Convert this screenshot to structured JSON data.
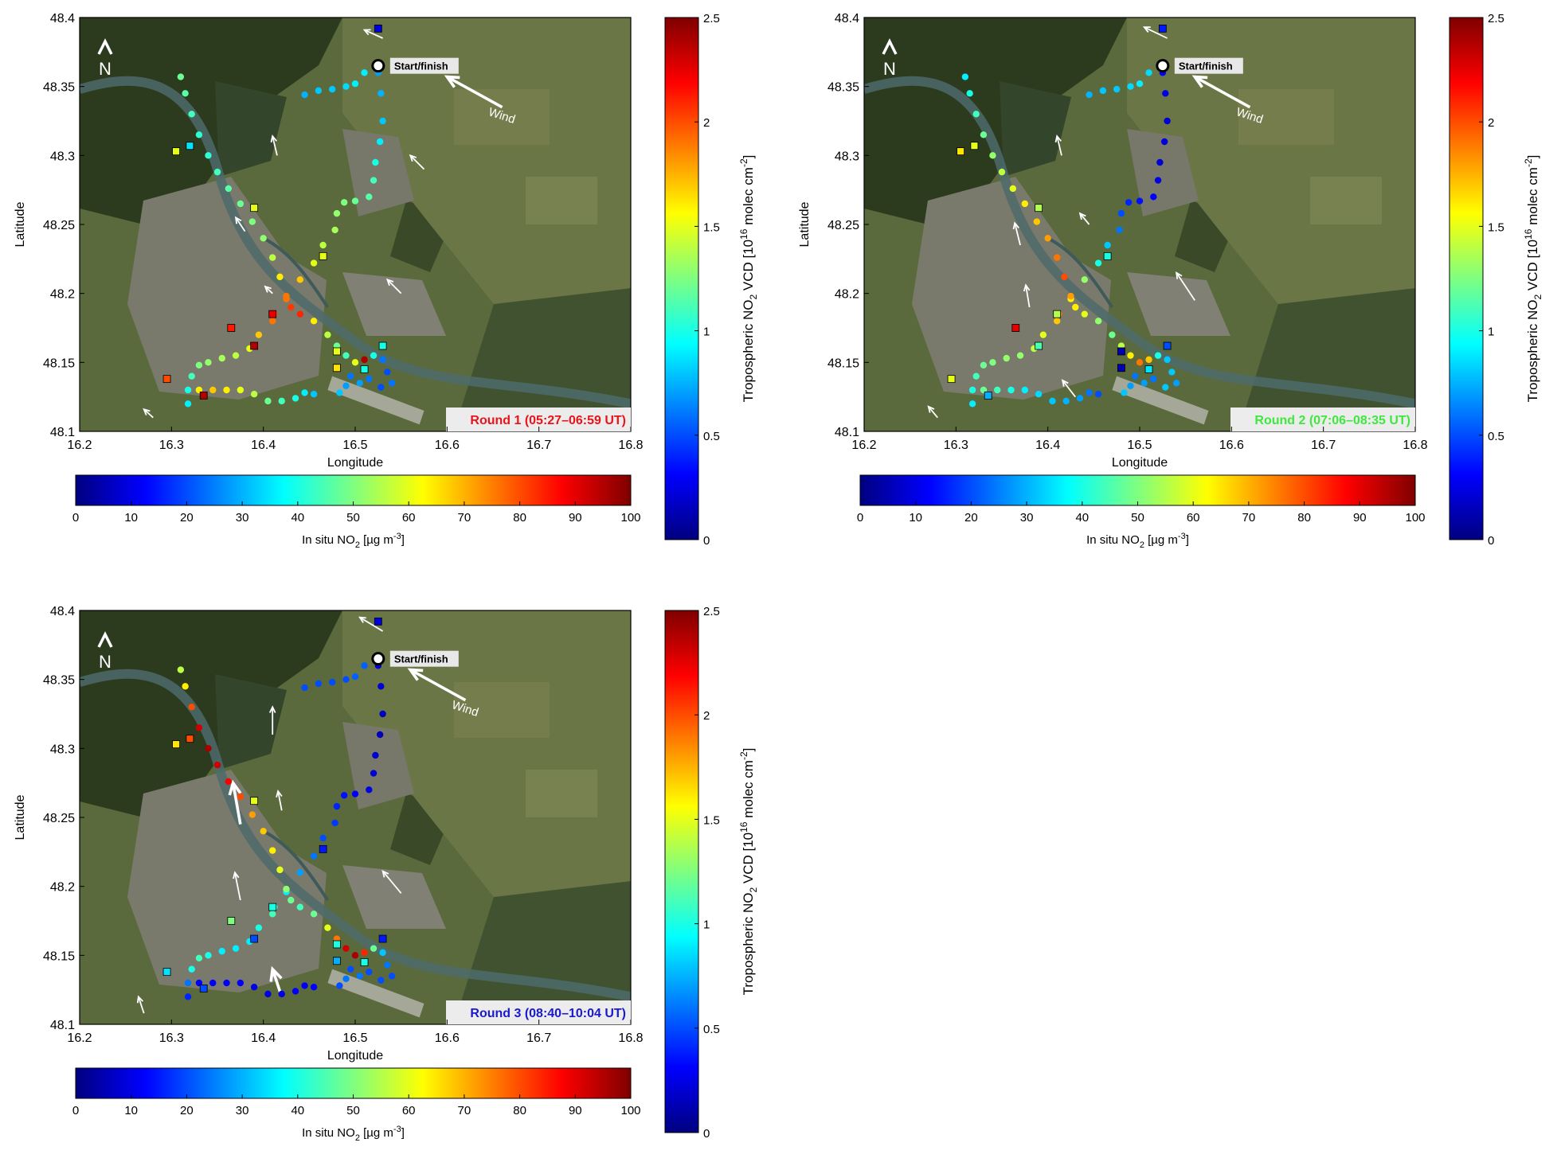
{
  "axes": {
    "xlabel": "Longitude",
    "ylabel": "Latitude",
    "x_ticks": [
      "16.2",
      "16.3",
      "16.4",
      "16.5",
      "16.6",
      "16.7",
      "16.8"
    ],
    "y_ticks": [
      "48.1",
      "48.15",
      "48.2",
      "48.25",
      "48.3",
      "48.35",
      "48.4"
    ],
    "xlim": [
      16.2,
      16.8
    ],
    "ylim": [
      48.1,
      48.4
    ]
  },
  "labels": {
    "start": "Start/finish",
    "wind": "Wind",
    "north": "N"
  },
  "colorbars": {
    "insitu": {
      "label_main": "In situ NO",
      "label_sub": "2",
      "label_unit": " [µg m",
      "label_sup": "-3",
      "label_close": "]",
      "ticks": [
        "0",
        "10",
        "20",
        "30",
        "40",
        "50",
        "60",
        "70",
        "80",
        "90",
        "100"
      ],
      "range": [
        0,
        100
      ]
    },
    "vcd": {
      "label_a": "Tropospheric NO",
      "label_sub": "2",
      "label_b": " VCD [10",
      "label_sup1": "16",
      "label_c": " molec cm",
      "label_sup2": "-2",
      "label_d": "]",
      "ticks": [
        "0",
        "0.5",
        "1",
        "1.5",
        "2",
        "2.5"
      ],
      "range": [
        0,
        2.5
      ]
    }
  },
  "colors": {
    "jet": [
      "#00007f",
      "#0000ff",
      "#007fff",
      "#00ffff",
      "#7fff7f",
      "#ffff00",
      "#ff7f00",
      "#ff0000",
      "#7f0000"
    ],
    "round1": "#e8141c",
    "round2": "#3fe83f",
    "round3": "#1a1acc"
  },
  "start_point": {
    "lon": 16.525,
    "lat": 48.365
  },
  "stations": [
    {
      "lon": 16.525,
      "lat": 48.392
    },
    {
      "lon": 16.305,
      "lat": 48.303
    },
    {
      "lon": 16.32,
      "lat": 48.307
    },
    {
      "lon": 16.39,
      "lat": 48.262
    },
    {
      "lon": 16.465,
      "lat": 48.227
    },
    {
      "lon": 16.365,
      "lat": 48.175
    },
    {
      "lon": 16.41,
      "lat": 48.185
    },
    {
      "lon": 16.39,
      "lat": 48.162
    },
    {
      "lon": 16.48,
      "lat": 48.158
    },
    {
      "lon": 16.48,
      "lat": 48.146
    },
    {
      "lon": 16.51,
      "lat": 48.145
    },
    {
      "lon": 16.53,
      "lat": 48.162
    },
    {
      "lon": 16.295,
      "lat": 48.138
    },
    {
      "lon": 16.335,
      "lat": 48.126
    }
  ],
  "route": [
    [
      16.525,
      48.365
    ],
    [
      16.51,
      48.36
    ],
    [
      16.5,
      48.352
    ],
    [
      16.49,
      48.35
    ],
    [
      16.475,
      48.348
    ],
    [
      16.46,
      48.347
    ],
    [
      16.445,
      48.344
    ],
    [
      16.525,
      48.36
    ],
    [
      16.528,
      48.345
    ],
    [
      16.53,
      48.325
    ],
    [
      16.527,
      48.31
    ],
    [
      16.522,
      48.295
    ],
    [
      16.52,
      48.282
    ],
    [
      16.515,
      48.27
    ],
    [
      16.5,
      48.267
    ],
    [
      16.488,
      48.266
    ],
    [
      16.48,
      48.258
    ],
    [
      16.478,
      48.246
    ],
    [
      16.465,
      48.235
    ],
    [
      16.455,
      48.222
    ],
    [
      16.44,
      48.21
    ],
    [
      16.425,
      48.196
    ],
    [
      16.412,
      48.185
    ],
    [
      16.31,
      48.357
    ],
    [
      16.315,
      48.345
    ],
    [
      16.322,
      48.33
    ],
    [
      16.33,
      48.315
    ],
    [
      16.34,
      48.3
    ],
    [
      16.35,
      48.288
    ],
    [
      16.362,
      48.276
    ],
    [
      16.375,
      48.265
    ],
    [
      16.388,
      48.252
    ],
    [
      16.4,
      48.24
    ],
    [
      16.41,
      48.226
    ],
    [
      16.418,
      48.212
    ],
    [
      16.425,
      48.198
    ],
    [
      16.43,
      48.19
    ],
    [
      16.44,
      48.185
    ],
    [
      16.455,
      48.18
    ],
    [
      16.47,
      48.17
    ],
    [
      16.48,
      48.162
    ],
    [
      16.49,
      48.155
    ],
    [
      16.5,
      48.15
    ],
    [
      16.51,
      48.152
    ],
    [
      16.52,
      48.155
    ],
    [
      16.53,
      48.152
    ],
    [
      16.535,
      48.143
    ],
    [
      16.54,
      48.135
    ],
    [
      16.528,
      48.132
    ],
    [
      16.515,
      48.138
    ],
    [
      16.505,
      48.135
    ],
    [
      16.495,
      48.14
    ],
    [
      16.49,
      48.133
    ],
    [
      16.483,
      48.128
    ],
    [
      16.41,
      48.18
    ],
    [
      16.395,
      48.17
    ],
    [
      16.385,
      48.16
    ],
    [
      16.37,
      48.155
    ],
    [
      16.355,
      48.153
    ],
    [
      16.34,
      48.15
    ],
    [
      16.33,
      48.148
    ],
    [
      16.322,
      48.14
    ],
    [
      16.318,
      48.13
    ],
    [
      16.318,
      48.12
    ],
    [
      16.33,
      48.13
    ],
    [
      16.345,
      48.13
    ],
    [
      16.36,
      48.13
    ],
    [
      16.375,
      48.13
    ],
    [
      16.39,
      48.127
    ],
    [
      16.405,
      48.122
    ],
    [
      16.42,
      48.122
    ],
    [
      16.435,
      48.124
    ],
    [
      16.445,
      48.128
    ],
    [
      16.455,
      48.127
    ]
  ],
  "rounds": [
    {
      "title": "Round 1 (05:27–06:59 UT)",
      "title_color": "#e8141c",
      "vcd_values": [
        0.9,
        0.9,
        0.9,
        0.85,
        0.8,
        0.8,
        0.75,
        0.7,
        0.75,
        0.8,
        0.9,
        1.0,
        1.1,
        1.15,
        1.2,
        1.25,
        1.3,
        1.35,
        1.4,
        1.5,
        1.7,
        1.9,
        2.0,
        1.2,
        1.15,
        1.1,
        1.05,
        1.05,
        1.1,
        1.15,
        1.2,
        1.25,
        1.3,
        1.4,
        1.6,
        1.9,
        2.05,
        2.1,
        1.6,
        1.4,
        1.2,
        1.1,
        1.5,
        2.4,
        1.0,
        0.6,
        0.5,
        0.6,
        0.5,
        0.6,
        0.7,
        0.6,
        0.7,
        0.8,
        1.9,
        1.7,
        1.5,
        1.4,
        1.35,
        1.3,
        1.25,
        1.1,
        1.0,
        0.9,
        1.6,
        1.7,
        1.6,
        1.5,
        1.4,
        1.2,
        1.1,
        1.0,
        0.9,
        0.8
      ],
      "station_values": [
        10,
        60,
        35,
        60,
        60,
        85,
        90,
        95,
        60,
        65,
        40,
        40,
        80,
        95
      ],
      "wind_arrows": [
        {
          "lon": 16.2,
          "lat": 48.375,
          "dlon": 0,
          "dlat": 0,
          "label": false,
          "big": false
        },
        {
          "lon": 16.53,
          "lat": 48.385,
          "dlon": -0.02,
          "dlat": 0.006,
          "big": false
        },
        {
          "lon": 16.575,
          "lat": 48.29,
          "dlon": -0.015,
          "dlat": 0.01,
          "big": false
        },
        {
          "lon": 16.415,
          "lat": 48.3,
          "dlon": -0.005,
          "dlat": 0.014,
          "big": false
        },
        {
          "lon": 16.38,
          "lat": 48.245,
          "dlon": -0.01,
          "dlat": 0.01,
          "big": false
        },
        {
          "lon": 16.41,
          "lat": 48.2,
          "dlon": -0.008,
          "dlat": 0.005,
          "big": false
        },
        {
          "lon": 16.55,
          "lat": 48.2,
          "dlon": -0.015,
          "dlat": 0.01,
          "big": false
        },
        {
          "lon": 16.28,
          "lat": 48.11,
          "dlon": -0.01,
          "dlat": 0.006,
          "big": false
        },
        {
          "lon": 16.66,
          "lat": 48.335,
          "dlon": -0.06,
          "dlat": 0.022,
          "big": true
        }
      ]
    },
    {
      "title": "Round 2 (07:06–08:35 UT)",
      "title_color": "#3fe83f",
      "vcd_values": [
        0.8,
        0.85,
        0.9,
        0.85,
        0.8,
        0.8,
        0.75,
        0.3,
        0.25,
        0.2,
        0.2,
        0.2,
        0.25,
        0.3,
        0.35,
        0.4,
        0.5,
        0.6,
        0.8,
        1.0,
        1.3,
        1.6,
        1.9,
        0.9,
        1.0,
        1.1,
        1.2,
        1.3,
        1.4,
        1.5,
        1.6,
        1.7,
        1.8,
        1.9,
        2.0,
        1.8,
        1.6,
        1.5,
        1.3,
        1.2,
        1.4,
        1.6,
        1.9,
        1.7,
        1.0,
        0.8,
        0.8,
        0.7,
        0.8,
        0.6,
        0.7,
        0.6,
        0.7,
        0.8,
        1.7,
        1.5,
        1.4,
        1.3,
        1.3,
        1.25,
        1.2,
        1.1,
        1.0,
        0.9,
        1.2,
        1.1,
        1.0,
        0.9,
        0.85,
        0.8,
        0.75,
        0.7,
        0.6,
        0.5
      ],
      "station_values": [
        15,
        65,
        60,
        55,
        40,
        90,
        55,
        45,
        5,
        5,
        35,
        20,
        60,
        30
      ],
      "wind_arrows": [
        {
          "lon": 16.53,
          "lat": 48.385,
          "dlon": -0.025,
          "dlat": 0.008,
          "big": false
        },
        {
          "lon": 16.575,
          "lat": 48.36,
          "dlon": -0.02,
          "dlat": 0.004,
          "big": false
        },
        {
          "lon": 16.415,
          "lat": 48.3,
          "dlon": -0.005,
          "dlat": 0.014,
          "big": false
        },
        {
          "lon": 16.37,
          "lat": 48.235,
          "dlon": -0.006,
          "dlat": 0.016,
          "big": false
        },
        {
          "lon": 16.445,
          "lat": 48.25,
          "dlon": -0.01,
          "dlat": 0.008,
          "big": false
        },
        {
          "lon": 16.38,
          "lat": 48.19,
          "dlon": -0.004,
          "dlat": 0.016,
          "big": false
        },
        {
          "lon": 16.56,
          "lat": 48.195,
          "dlon": -0.02,
          "dlat": 0.02,
          "big": false
        },
        {
          "lon": 16.43,
          "lat": 48.125,
          "dlon": -0.014,
          "dlat": 0.012,
          "big": false
        },
        {
          "lon": 16.28,
          "lat": 48.11,
          "dlon": -0.01,
          "dlat": 0.008,
          "big": false
        },
        {
          "lon": 16.62,
          "lat": 48.335,
          "dlon": -0.06,
          "dlat": 0.022,
          "big": true
        }
      ]
    },
    {
      "title": "Round 3 (08:40–10:04 UT)",
      "title_color": "#1a1acc",
      "vcd_values": [
        0.5,
        0.55,
        0.55,
        0.5,
        0.5,
        0.5,
        0.5,
        0.2,
        0.2,
        0.15,
        0.15,
        0.2,
        0.2,
        0.25,
        0.3,
        0.35,
        0.4,
        0.45,
        0.5,
        0.6,
        0.7,
        0.9,
        1.0,
        1.4,
        1.6,
        2.0,
        2.3,
        2.4,
        2.3,
        2.2,
        2.0,
        1.8,
        1.7,
        1.6,
        1.5,
        1.3,
        1.2,
        1.1,
        1.2,
        1.5,
        1.9,
        2.3,
        2.4,
        2.1,
        1.2,
        0.8,
        0.6,
        0.5,
        0.5,
        0.5,
        0.6,
        0.5,
        0.6,
        0.5,
        1.1,
        1.0,
        0.9,
        0.9,
        0.9,
        1.0,
        1.1,
        1.0,
        0.6,
        0.4,
        0.3,
        0.3,
        0.3,
        0.3,
        0.25,
        0.25,
        0.25,
        0.3,
        0.3,
        0.3
      ],
      "station_values": [
        10,
        65,
        80,
        60,
        15,
        50,
        40,
        20,
        40,
        30,
        40,
        15,
        35,
        20
      ],
      "wind_arrows": [
        {
          "lon": 16.53,
          "lat": 48.385,
          "dlon": -0.025,
          "dlat": 0.01,
          "big": false
        },
        {
          "lon": 16.41,
          "lat": 48.31,
          "dlon": 0,
          "dlat": 0.02,
          "big": false
        },
        {
          "lon": 16.375,
          "lat": 48.245,
          "dlon": -0.008,
          "dlat": 0.03,
          "big": true
        },
        {
          "lon": 16.42,
          "lat": 48.255,
          "dlon": -0.004,
          "dlat": 0.014,
          "big": false
        },
        {
          "lon": 16.375,
          "lat": 48.19,
          "dlon": -0.006,
          "dlat": 0.02,
          "big": false
        },
        {
          "lon": 16.55,
          "lat": 48.195,
          "dlon": -0.02,
          "dlat": 0.016,
          "big": false
        },
        {
          "lon": 16.42,
          "lat": 48.12,
          "dlon": -0.01,
          "dlat": 0.02,
          "big": true
        },
        {
          "lon": 16.27,
          "lat": 48.108,
          "dlon": -0.006,
          "dlat": 0.012,
          "big": false
        },
        {
          "lon": 16.62,
          "lat": 48.335,
          "dlon": -0.06,
          "dlat": 0.022,
          "big": true
        }
      ]
    }
  ]
}
